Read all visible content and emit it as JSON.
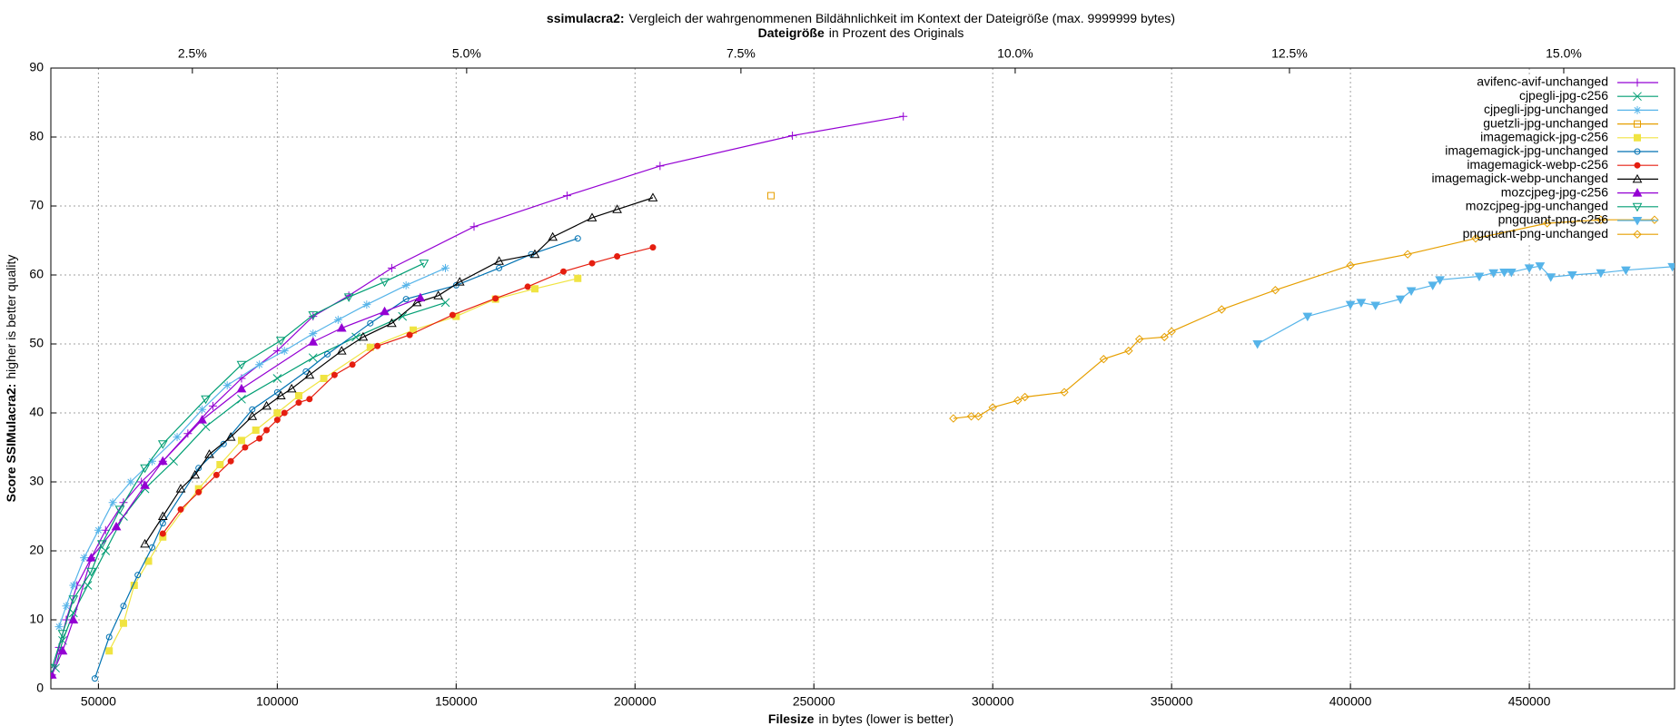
{
  "chart_data": {
    "type": "line",
    "title": {
      "bold": "ssimulacra2:",
      "text": "Vergleich der wahrgenommenen Bildähnlichkeit im Kontext der Dateigröße (max. 9999999 bytes)"
    },
    "x2_label": {
      "bold": "Dateigröße",
      "text": "in Prozent des Originals"
    },
    "x_label": {
      "bold": "Filesize",
      "text": "in bytes (lower is better)"
    },
    "y_label": {
      "bold": "Score SSIMulacra2:",
      "text": "higher is better quality"
    },
    "xlim": [
      36700,
      490600
    ],
    "xticks": [
      50000,
      100000,
      150000,
      200000,
      250000,
      300000,
      350000,
      400000,
      450000
    ],
    "x2lim": [
      1.21,
      16.01
    ],
    "x2ticks": [
      {
        "value": 2.5,
        "label": "2.5%"
      },
      {
        "value": 5,
        "label": "5.0%"
      },
      {
        "value": 7.5,
        "label": "7.5%"
      },
      {
        "value": 10,
        "label": "10.0%"
      },
      {
        "value": 12.5,
        "label": "12.5%"
      },
      {
        "value": 15,
        "label": "15.0%"
      }
    ],
    "ylim": [
      0,
      90
    ],
    "yticks": [
      0,
      10,
      20,
      30,
      40,
      50,
      60,
      70,
      80,
      90
    ],
    "grid": true,
    "legend": "top-right",
    "series": [
      {
        "name": "avifenc-avif-unchanged",
        "color": "#9400d3",
        "marker": "plus",
        "x": [
          37000,
          39000,
          41000,
          44000,
          48000,
          52000,
          57000,
          62000,
          68000,
          75000,
          82000,
          90000,
          100000,
          110000,
          120000,
          132000,
          155000,
          181000,
          207000,
          244000,
          275000
        ],
        "values": [
          2,
          6,
          10,
          15,
          19,
          23,
          27,
          30,
          33,
          37,
          41,
          45,
          49,
          54,
          57,
          61,
          67,
          71.5,
          75.8,
          80.2,
          83
        ]
      },
      {
        "name": "cjpegli-jpg-c256",
        "color": "#009e73",
        "marker": "cross",
        "x": [
          38000,
          40000,
          43000,
          47000,
          52000,
          57000,
          63000,
          71000,
          80000,
          90000,
          100000,
          110000,
          122000,
          135000,
          147000
        ],
        "values": [
          3,
          7,
          11,
          15,
          20,
          25,
          29,
          33,
          38,
          42,
          45,
          48,
          51,
          54,
          56
        ]
      },
      {
        "name": "cjpegli-jpg-unchanged",
        "color": "#56b4e9",
        "marker": "star",
        "x": [
          39000,
          41000,
          43000,
          46000,
          50000,
          54000,
          59000,
          65000,
          72000,
          79000,
          86000,
          95000,
          102000,
          110000,
          117000,
          125000,
          136000,
          147000
        ],
        "values": [
          9,
          12,
          15,
          19,
          23,
          27,
          30,
          33,
          36.5,
          40.5,
          44,
          47,
          49,
          51.5,
          53.5,
          55.7,
          58.5,
          61
        ]
      },
      {
        "name": "guetzli-jpg-unchanged",
        "color": "#e69f00",
        "marker": "square",
        "x": [
          238000
        ],
        "values": [
          71.5
        ]
      },
      {
        "name": "imagemagick-jpg-c256",
        "color": "#f0e442",
        "marker": "square-filled",
        "x": [
          53000,
          57000,
          60000,
          64000,
          68000,
          78000,
          84000,
          90000,
          94000,
          100000,
          106000,
          113000,
          126000,
          138000,
          150000,
          161000,
          172000,
          184000
        ],
        "values": [
          5.5,
          9.5,
          15,
          18.5,
          22,
          29,
          32.5,
          36,
          37.5,
          40,
          42.5,
          45,
          49.5,
          52,
          54,
          56.5,
          58,
          59.5
        ]
      },
      {
        "name": "imagemagick-jpg-unchanged",
        "color": "#0072b2",
        "marker": "circle",
        "x": [
          49000,
          53000,
          57000,
          61000,
          65000,
          68000,
          78000,
          85000,
          93000,
          100000,
          108000,
          114000,
          126000,
          136000,
          150000,
          162000,
          171000,
          184000
        ],
        "values": [
          1.5,
          7.5,
          12,
          16.5,
          20.5,
          24,
          32,
          35.5,
          40.5,
          43,
          46,
          48.5,
          53,
          56.5,
          58.5,
          61,
          63,
          65.3
        ]
      },
      {
        "name": "imagemagick-webp-c256",
        "color": "#e51e10",
        "marker": "circle-filled",
        "x": [
          68000,
          73000,
          78000,
          83000,
          87000,
          91000,
          95000,
          97000,
          100000,
          102000,
          106000,
          109000,
          116000,
          121000,
          128000,
          137000,
          149000,
          161000,
          170000,
          180000,
          188000,
          195000,
          205000
        ],
        "values": [
          22.5,
          26,
          28.5,
          31,
          33,
          35,
          36.3,
          37.5,
          39,
          40,
          41.5,
          42,
          45.5,
          47,
          49.7,
          51.3,
          54.2,
          56.6,
          58.3,
          60.5,
          61.7,
          62.7,
          64
        ]
      },
      {
        "name": "imagemagick-webp-unchanged",
        "color": "#000000",
        "marker": "triangle",
        "x": [
          63000,
          68000,
          73000,
          77000,
          81000,
          87000,
          93000,
          97000,
          101000,
          104000,
          109000,
          118000,
          124000,
          132000,
          139000,
          145000,
          151000,
          162000,
          172000,
          177000,
          188000,
          195000,
          205000
        ],
        "values": [
          21,
          25,
          29,
          31,
          34,
          36.5,
          39.5,
          41,
          42.5,
          43.5,
          45.5,
          49,
          51,
          53,
          56,
          57,
          59,
          62,
          63,
          65.5,
          68.3,
          69.5,
          71.2
        ]
      },
      {
        "name": "mozcjpeg-jpg-c256",
        "color": "#9400d3",
        "marker": "triangle-filled",
        "x": [
          37000,
          40000,
          43000,
          48000,
          55000,
          63000,
          68000,
          79000,
          90000,
          110000,
          118000,
          130000,
          140000
        ],
        "values": [
          2,
          5.5,
          10,
          19,
          23.5,
          29.5,
          33,
          39,
          43.5,
          50.3,
          52.3,
          54.7,
          56.7
        ]
      },
      {
        "name": "mozcjpeg-jpg-unchanged",
        "color": "#009e73",
        "marker": "tri-down",
        "x": [
          37000,
          40000,
          43000,
          48000,
          51000,
          56000,
          63000,
          68000,
          80000,
          90000,
          101000,
          110000,
          120000,
          130000,
          141000
        ],
        "values": [
          3,
          8,
          13,
          17,
          21,
          26,
          32,
          35.5,
          42,
          47,
          50.5,
          54.2,
          56.8,
          59,
          61.7
        ]
      },
      {
        "name": "pngquant-png-c256",
        "color": "#56b4e9",
        "marker": "tri-down-filled",
        "x": [
          374000,
          388000,
          400000,
          403000,
          407000,
          414000,
          417000,
          423000,
          425000,
          436000,
          440000,
          443000,
          445000,
          450000,
          453000,
          456000,
          462000,
          470000,
          477000,
          490000
        ],
        "values": [
          50,
          54,
          55.7,
          56,
          55.6,
          56.5,
          57.7,
          58.5,
          59.3,
          59.8,
          60.3,
          60.4,
          60.4,
          61,
          61.3,
          59.7,
          60,
          60.3,
          60.7,
          61.2
        ]
      },
      {
        "name": "pngquant-png-unchanged",
        "color": "#e69f00",
        "marker": "diamond",
        "x": [
          289000,
          294000,
          296000,
          300000,
          307000,
          309000,
          320000,
          331000,
          338000,
          341000,
          348000,
          350000,
          364000,
          379000,
          400000,
          416000,
          435000,
          455000,
          470000,
          485000
        ],
        "values": [
          39.2,
          39.5,
          39.5,
          40.8,
          41.8,
          42.3,
          43,
          47.8,
          49,
          50.7,
          51,
          51.8,
          55,
          57.8,
          61.4,
          63,
          65.3,
          67.5,
          68,
          68
        ]
      }
    ]
  }
}
